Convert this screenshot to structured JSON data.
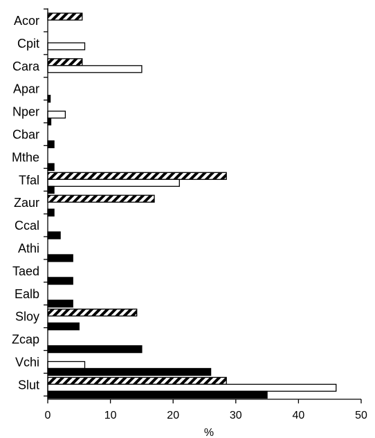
{
  "chart_data": {
    "type": "bar",
    "orientation": "horizontal",
    "title": "",
    "xlabel": "%",
    "ylabel": "",
    "xlim": [
      0,
      50
    ],
    "xticks": [
      0,
      10,
      20,
      30,
      40,
      50
    ],
    "grid": false,
    "legend": "none",
    "categories": [
      "Acor",
      "Cpit",
      "Cara",
      "Apar",
      "Nper",
      "Cbar",
      "Mthe",
      "Tfal",
      "Zaur",
      "Ccal",
      "Athi",
      "Taed",
      "Ealb",
      "Sloy",
      "Zcap",
      "Vchi",
      "Slut"
    ],
    "series": [
      {
        "style": "hatched",
        "values": [
          5.5,
          0,
          5.5,
          0,
          0,
          0,
          0,
          28.5,
          17,
          0,
          0,
          0,
          0,
          14.2,
          0,
          0,
          28.5
        ]
      },
      {
        "style": "white",
        "values": [
          0,
          5.9,
          15,
          0,
          2.8,
          0,
          0,
          21,
          0,
          0,
          0,
          0,
          0,
          0,
          0,
          5.9,
          46
        ]
      },
      {
        "style": "black",
        "values": [
          0,
          0,
          0,
          0.4,
          0.5,
          1,
          1,
          1,
          1,
          2,
          4,
          4,
          4,
          5,
          15,
          26,
          35
        ]
      }
    ]
  }
}
